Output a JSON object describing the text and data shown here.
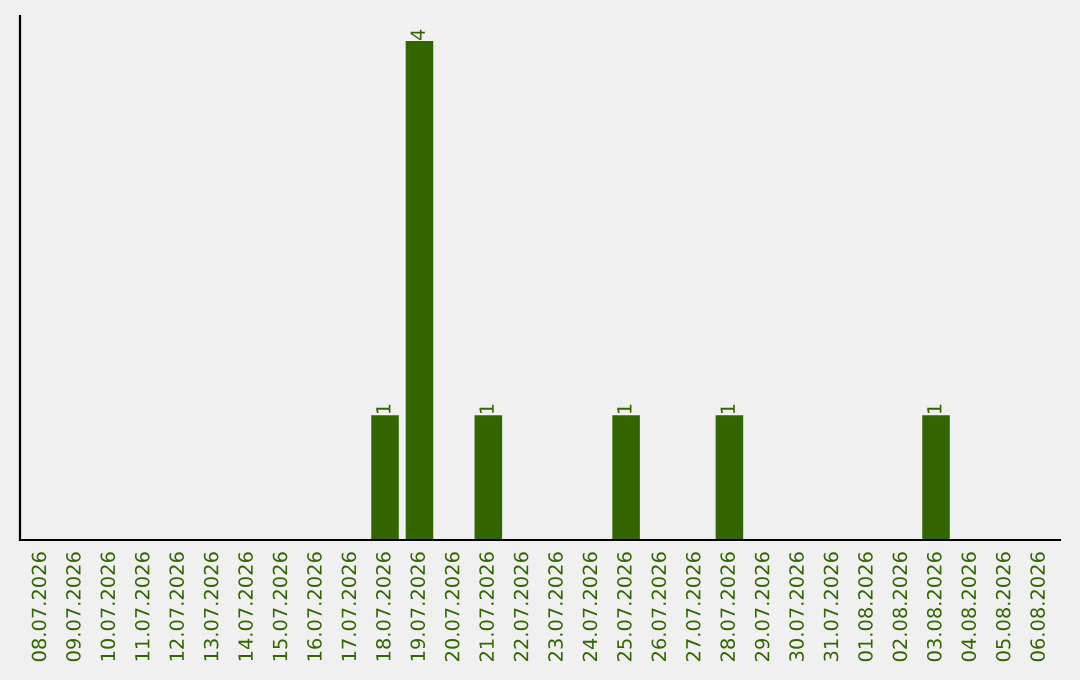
{
  "chart_data": {
    "type": "bar",
    "categories": [
      "08.07.2026",
      "09.07.2026",
      "10.07.2026",
      "11.07.2026",
      "12.07.2026",
      "13.07.2026",
      "14.07.2026",
      "15.07.2026",
      "16.07.2026",
      "17.07.2026",
      "18.07.2026",
      "19.07.2026",
      "20.07.2026",
      "21.07.2026",
      "22.07.2026",
      "23.07.2026",
      "24.07.2026",
      "25.07.2026",
      "26.07.2026",
      "27.07.2026",
      "28.07.2026",
      "29.07.2026",
      "30.07.2026",
      "31.07.2026",
      "01.08.2026",
      "02.08.2026",
      "03.08.2026",
      "04.08.2026",
      "05.08.2026",
      "06.08.2026"
    ],
    "values": [
      0,
      0,
      0,
      0,
      0,
      0,
      0,
      0,
      0,
      0,
      1,
      4,
      0,
      1,
      0,
      0,
      0,
      1,
      0,
      0,
      1,
      0,
      0,
      0,
      0,
      0,
      1,
      0,
      0,
      0
    ],
    "value_labels": [
      null,
      null,
      null,
      null,
      null,
      null,
      null,
      null,
      null,
      null,
      "1",
      "4",
      null,
      "1",
      null,
      null,
      null,
      "1",
      null,
      null,
      "1",
      null,
      null,
      null,
      null,
      null,
      "1",
      null,
      null,
      null
    ],
    "color": "#336600",
    "tick_labels": "x",
    "grid": false,
    "legend": false
  }
}
